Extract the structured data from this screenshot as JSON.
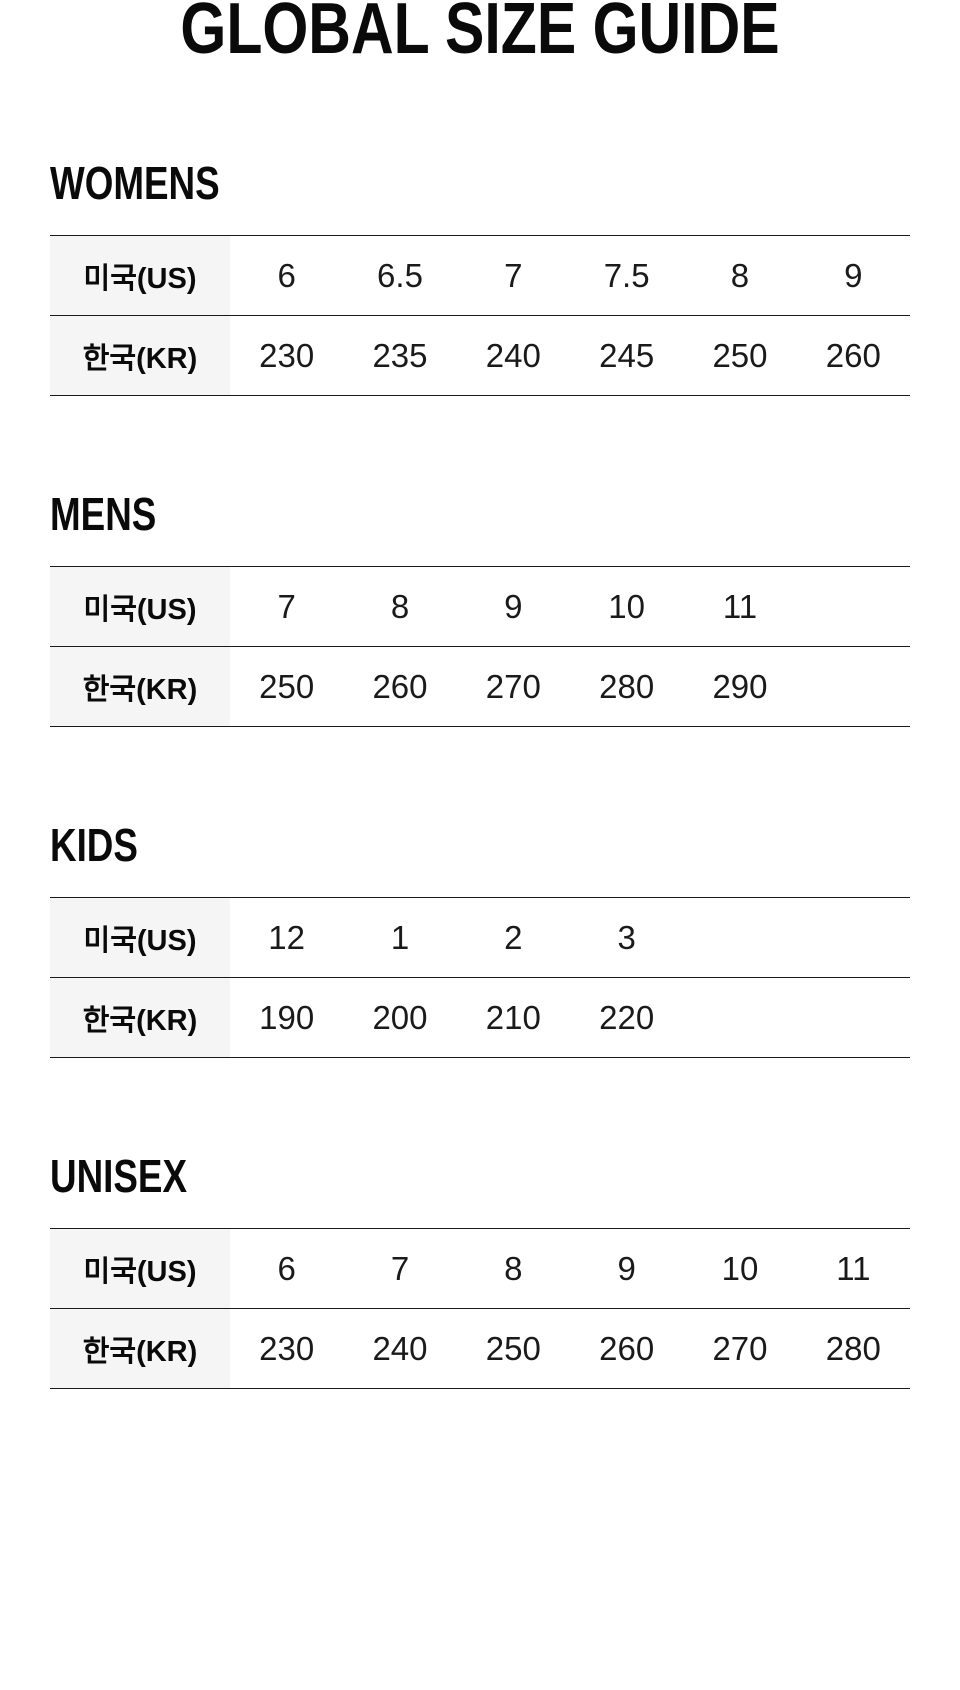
{
  "page": {
    "title": "GLOBAL SIZE GUIDE"
  },
  "row_labels": {
    "us": "미국(US)",
    "kr": "한국(KR)"
  },
  "colors": {
    "background": "#ffffff",
    "label_column_bg": "#f5f5f5",
    "table_border": "#1a1a1a",
    "text": "#111111"
  },
  "sections": [
    {
      "heading": "WOMENS",
      "us": [
        "6",
        "6.5",
        "7",
        "7.5",
        "8",
        "9"
      ],
      "kr": [
        "230",
        "235",
        "240",
        "245",
        "250",
        "260"
      ]
    },
    {
      "heading": "MENS",
      "us": [
        "7",
        "8",
        "9",
        "10",
        "11",
        ""
      ],
      "kr": [
        "250",
        "260",
        "270",
        "280",
        "290",
        ""
      ]
    },
    {
      "heading": "KIDS",
      "us": [
        "12",
        "1",
        "2",
        "3",
        "",
        ""
      ],
      "kr": [
        "190",
        "200",
        "210",
        "220",
        "",
        ""
      ]
    },
    {
      "heading": "UNISEX",
      "us": [
        "6",
        "7",
        "8",
        "9",
        "10",
        "11"
      ],
      "kr": [
        "230",
        "240",
        "250",
        "260",
        "270",
        "280"
      ]
    }
  ]
}
